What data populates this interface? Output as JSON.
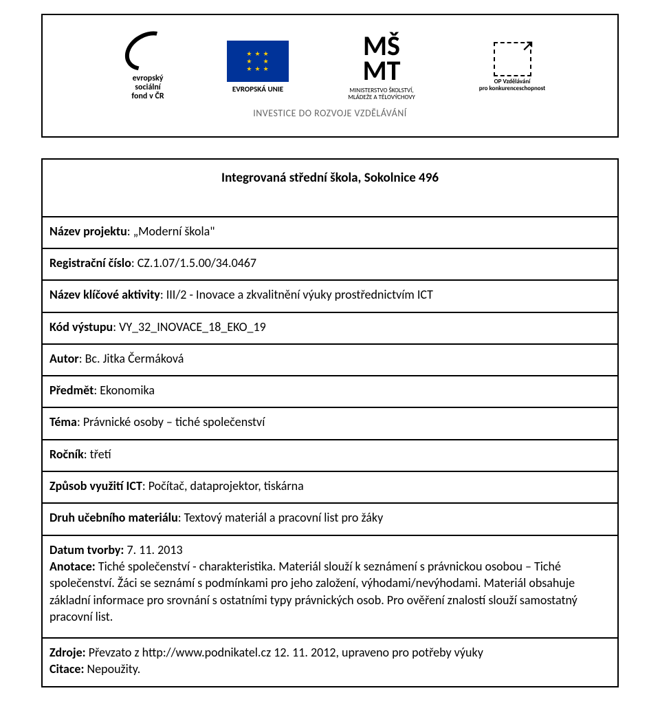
{
  "banner": {
    "esf_line1": "evropský",
    "esf_line2": "sociální",
    "esf_line3": "fond v ČR",
    "eu_label": "EVROPSKÁ UNIE",
    "msmt_line1": "MINISTERSTVO ŠKOLSTVÍ,",
    "msmt_line2": "MLÁDEŽE A TĚLOVÝCHOVY",
    "op_line1": "OP Vzdělávání",
    "op_line2": "pro konkurenceschopnost",
    "tagline": "INVESTICE DO ROZVOJE VZDĚLÁVÁNÍ"
  },
  "title": "Integrovaná střední škola, Sokolnice 496",
  "project": {
    "label": "Název projektu",
    "value": ": „Moderní škola\""
  },
  "reg": {
    "label": "Registrační číslo",
    "value": ": CZ.1.07/1.5.00/34.0467"
  },
  "activity": {
    "label": "Název klíčové aktivity",
    "value": ": III/2 - Inovace a zkvalitnění výuky prostřednictvím ICT"
  },
  "output_code": {
    "label": "Kód výstupu",
    "value": ": VY_32_INOVACE_18_EKO_19"
  },
  "author": {
    "label": "Autor",
    "value": ": Bc. Jitka Čermáková"
  },
  "subject": {
    "label": "Předmět",
    "value": ": Ekonomika"
  },
  "topic": {
    "label": "Téma",
    "value": ": Právnické osoby – tiché společenství"
  },
  "year": {
    "label": "Ročník",
    "value": ": třetí"
  },
  "ict": {
    "label": "Způsob využití ICT",
    "value": ": Počítač, dataprojektor, tiskárna"
  },
  "material": {
    "label": "Druh učebního materiálu",
    "value": ":  Textový materiál a pracovní list pro žáky"
  },
  "date": {
    "label": "Datum tvorby:",
    "value": "  7. 11. 2013"
  },
  "annotation": {
    "label": "Anotace:",
    "value": " Tiché společenství -   charakteristika. Materiál slouží k seznámení s právnickou osobou – Tiché společenství. Žáci se seznámí s podmínkami pro jeho založení, výhodami/nevýhodami. Materiál obsahuje základní informace pro srovnání s ostatními typy právnických osob. Pro ověření znalostí slouží samostatný pracovní list."
  },
  "sources": {
    "label": "Zdroje:",
    "value": " Převzato z http://www.podnikatel.cz    12. 11. 2012, upraveno pro potřeby výuky"
  },
  "citation": {
    "label": "Citace:",
    "value": "  Nepoužity."
  }
}
